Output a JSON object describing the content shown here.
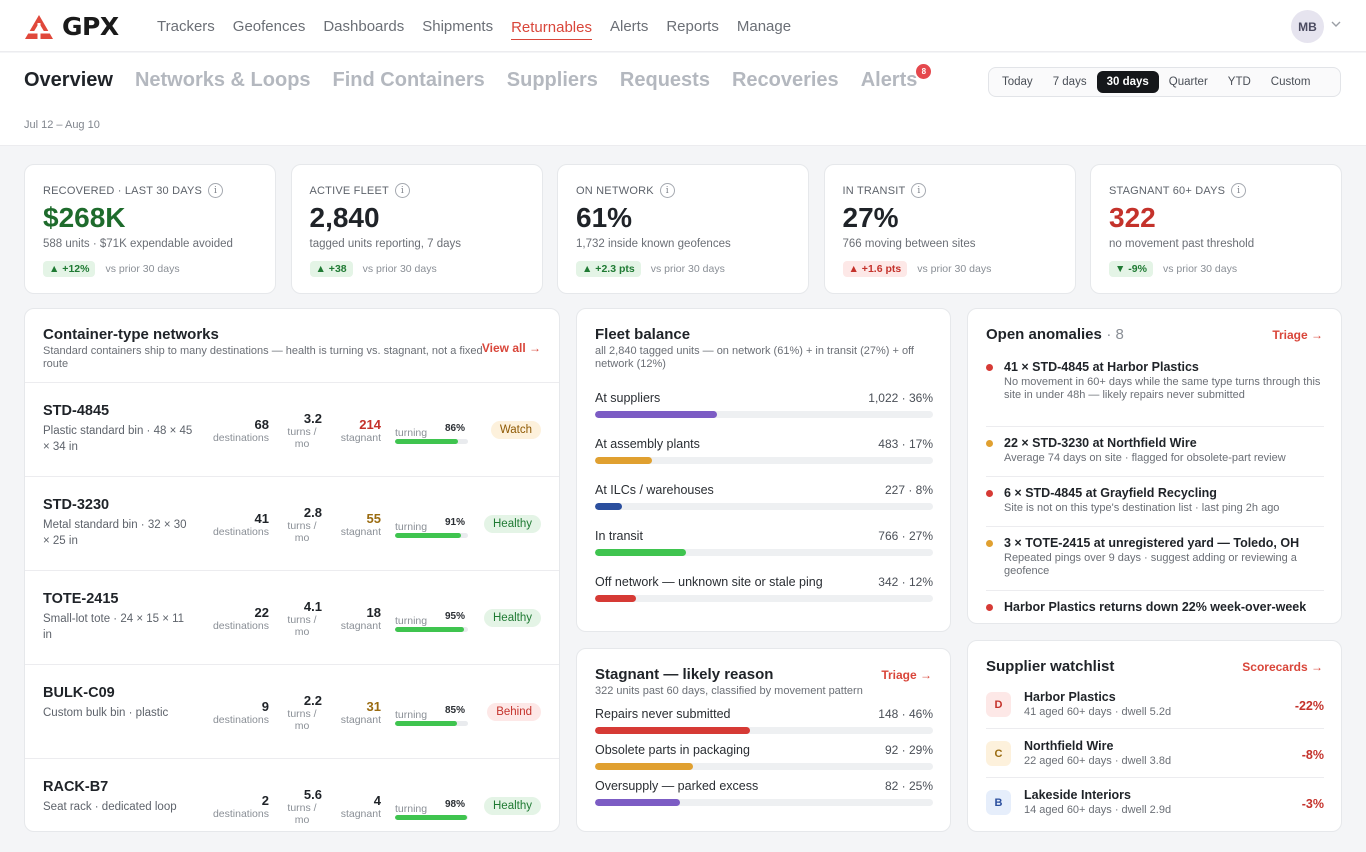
{
  "brand": {
    "name": "GPX",
    "accent": "#d9463a"
  },
  "nav": {
    "items": [
      "Trackers",
      "Geofences",
      "Dashboards",
      "Shipments",
      "Returnables",
      "Alerts",
      "Reports",
      "Manage"
    ],
    "active": "Returnables",
    "user_initials": "MB"
  },
  "subnav": {
    "tabs": [
      "Overview",
      "Networks & Loops",
      "Find Containers",
      "Suppliers",
      "Requests",
      "Recoveries",
      "Alerts"
    ],
    "alerts_badge": "8",
    "date_range": "Jul 12 – Aug 10",
    "periods": [
      "Today",
      "7 days",
      "30 days",
      "Quarter",
      "YTD",
      "Custom"
    ],
    "active_period": "30 days"
  },
  "kpis": [
    {
      "label": "RECOVERED · LAST 30 DAYS",
      "value": "$268K",
      "sub": "588 units · $71K expendable avoided",
      "delta": "▲ +12%",
      "delta_tone": "up",
      "note": "vs prior 30 days"
    },
    {
      "label": "ACTIVE FLEET",
      "value": "2,840",
      "sub": "tagged units reporting, 7 days",
      "delta": "▲ +38",
      "delta_tone": "up",
      "note": "vs prior 30 days"
    },
    {
      "label": "ON NETWORK",
      "value": "61%",
      "sub": "1,732 inside known geofences",
      "delta": "▲ +2.3 pts",
      "delta_tone": "up",
      "note": "vs prior 30 days"
    },
    {
      "label": "IN TRANSIT",
      "value": "27%",
      "sub": "766 moving between sites",
      "delta": "▲ +1.6 pts",
      "delta_tone": "bad",
      "note": "vs prior 30 days"
    },
    {
      "label": "STAGNANT 60+ DAYS",
      "value": "322",
      "sub": "no movement past threshold",
      "delta": "▼ -9%",
      "delta_tone": "down",
      "note": "vs prior 30 days"
    }
  ],
  "networks": {
    "title": "Container-type networks",
    "subtitle": "Standard containers ship to many destinations — health is turning vs. stagnant, not a fixed route",
    "link": "View all →",
    "labels": {
      "destinations": "destinations",
      "turns": "turns / mo",
      "stagnant": "stagnant",
      "turning": "turning"
    },
    "rows": [
      {
        "name": "STD-4845",
        "desc": "Plastic standard bin · 48 × 45 × 34 in",
        "destinations": "68",
        "turns": "3.2",
        "stagnant": "214",
        "stag_tone": "red",
        "turning_pct": "86%",
        "turning": 0.86,
        "status": "Watch",
        "status_tone": "watch"
      },
      {
        "name": "STD-3230",
        "desc": "Metal standard bin · 32 × 30 × 25 in",
        "destinations": "41",
        "turns": "2.8",
        "stagnant": "55",
        "stag_tone": "amber",
        "turning_pct": "91%",
        "turning": 0.91,
        "status": "Healthy",
        "status_tone": "healthy"
      },
      {
        "name": "TOTE-2415",
        "desc": "Small-lot tote · 24 × 15 × 11 in",
        "destinations": "22",
        "turns": "4.1",
        "stagnant": "18",
        "stag_tone": "plain",
        "turning_pct": "95%",
        "turning": 0.95,
        "status": "Healthy",
        "status_tone": "healthy"
      },
      {
        "name": "BULK-C09",
        "desc": "Custom bulk bin · plastic",
        "destinations": "9",
        "turns": "2.2",
        "stagnant": "31",
        "stag_tone": "amber",
        "turning_pct": "85%",
        "turning": 0.85,
        "status": "Behind",
        "status_tone": "behind"
      },
      {
        "name": "RACK-B7",
        "desc": "Seat rack · dedicated loop",
        "destinations": "2",
        "turns": "5.6",
        "stagnant": "4",
        "stag_tone": "plain",
        "turning_pct": "98%",
        "turning": 0.98,
        "status": "Healthy",
        "status_tone": "healthy"
      }
    ]
  },
  "balance": {
    "title": "Fleet balance",
    "subtitle": "all 2,840 tagged units — on network (61%) + in transit (27%) + off network (12%)",
    "rows": [
      {
        "label": "At suppliers",
        "value": "1,022 · 36%",
        "share": 0.36,
        "color": "#7c5cc4"
      },
      {
        "label": "At assembly plants",
        "value": "483 · 17%",
        "share": 0.17,
        "color": "#e0a030"
      },
      {
        "label": "At ILCs / warehouses",
        "value": "227 · 8%",
        "share": 0.08,
        "color": "#2b4f9e"
      },
      {
        "label": "In transit",
        "value": "766 · 27%",
        "share": 0.27,
        "color": "#3fc44f"
      },
      {
        "label": "Off network — unknown site or stale ping",
        "value": "342 · 12%",
        "share": 0.12,
        "color": "#d63a35"
      }
    ]
  },
  "stagnant": {
    "title": "Stagnant — likely reason",
    "subtitle": "322 units past 60 days, classified by movement pattern",
    "link": "Triage →",
    "rows": [
      {
        "label": "Repairs never submitted",
        "value": "148 · 46%",
        "share": 0.46,
        "color": "#d63a35"
      },
      {
        "label": "Obsolete parts in packaging",
        "value": "92 · 29%",
        "share": 0.29,
        "color": "#e0a030"
      },
      {
        "label": "Oversupply — parked excess",
        "value": "82 · 25%",
        "share": 0.25,
        "color": "#7c5cc4"
      }
    ]
  },
  "anomalies": {
    "title": "Open anomalies",
    "count": "· 8",
    "link": "Triage →",
    "items": [
      {
        "title": "41 × STD-4845 at Harbor Plastics",
        "desc": "No movement in 60+ days while the same type turns through this site in under 48h — likely repairs never submitted",
        "color": "#d63a35"
      },
      {
        "title": "22 × STD-3230 at Northfield Wire",
        "desc": "Average 74 days on site · flagged for obsolete-part review",
        "color": "#e0a030"
      },
      {
        "title": "6 × STD-4845 at Grayfield Recycling",
        "desc": "Site is not on this type's destination list · last ping 2h ago",
        "color": "#d63a35"
      },
      {
        "title": "3 × TOTE-2415 at unregistered yard — Toledo, OH",
        "desc": "Repeated pings over 9 days · suggest adding or reviewing a geofence",
        "color": "#e0a030"
      },
      {
        "title": "Harbor Plastics returns down 22% week-over-week",
        "desc": "",
        "color": "#d63a35"
      }
    ]
  },
  "suppliers": {
    "title": "Supplier watchlist",
    "link": "Scorecards →",
    "items": [
      {
        "initial": "D",
        "name": "Harbor Plastics",
        "meta": "41 aged 60+ days · dwell 5.2d",
        "delta": "-22%",
        "bg": "#fde8e7",
        "fg": "#c4322b"
      },
      {
        "initial": "C",
        "name": "Northfield Wire",
        "meta": "22 aged 60+ days · dwell 3.8d",
        "delta": "-8%",
        "bg": "#fdf1dc",
        "fg": "#9a6b10"
      },
      {
        "initial": "B",
        "name": "Lakeside Interiors",
        "meta": "14 aged 60+ days · dwell 2.9d",
        "delta": "-3%",
        "bg": "#e6eefb",
        "fg": "#2b4f9e"
      }
    ]
  }
}
